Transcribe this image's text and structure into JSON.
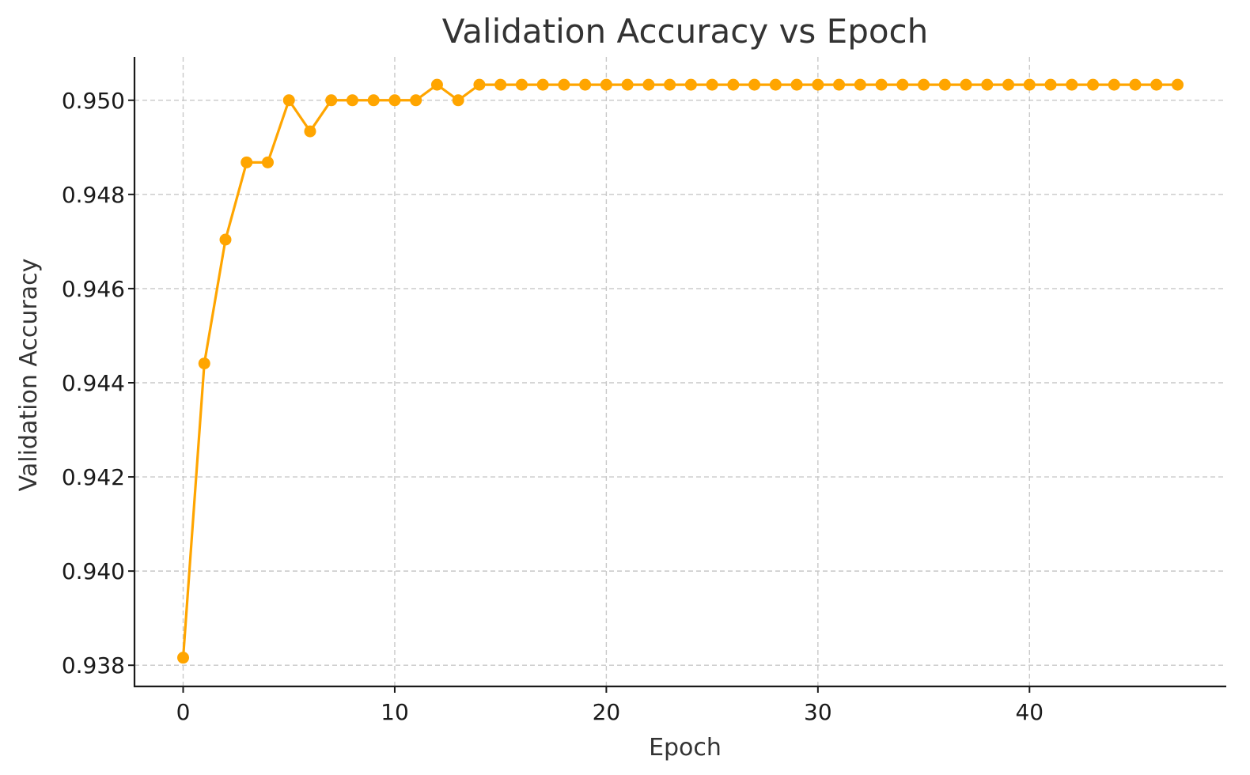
{
  "chart_data": {
    "type": "line",
    "title": "Validation Accuracy vs Epoch",
    "xlabel": "Epoch",
    "ylabel": "Validation Accuracy",
    "xlim": [
      -2.3,
      49.3
    ],
    "ylim": [
      0.93755,
      0.95092
    ],
    "xticks": [
      0,
      10,
      20,
      30,
      40
    ],
    "yticks": [
      0.938,
      0.94,
      0.942,
      0.944,
      0.946,
      0.948,
      0.95
    ],
    "ytick_format_decimals": 3,
    "grid": true,
    "color": "#FFA500",
    "x": [
      0,
      1,
      2,
      3,
      4,
      5,
      6,
      7,
      8,
      9,
      10,
      11,
      12,
      13,
      14,
      15,
      16,
      17,
      18,
      19,
      20,
      21,
      22,
      23,
      24,
      25,
      26,
      27,
      28,
      29,
      30,
      31,
      32,
      33,
      34,
      35,
      36,
      37,
      38,
      39,
      40,
      41,
      42,
      43,
      44,
      45,
      46,
      47
    ],
    "series": [
      {
        "values": [
          0.93816,
          0.94441,
          0.94704,
          0.94868,
          0.94868,
          0.95,
          0.94934,
          0.95,
          0.95,
          0.95,
          0.95,
          0.95,
          0.95033,
          0.95,
          0.95033,
          0.95033,
          0.95033,
          0.95033,
          0.95033,
          0.95033,
          0.95033,
          0.95033,
          0.95033,
          0.95033,
          0.95033,
          0.95033,
          0.95033,
          0.95033,
          0.95033,
          0.95033,
          0.95033,
          0.95033,
          0.95033,
          0.95033,
          0.95033,
          0.95033,
          0.95033,
          0.95033,
          0.95033,
          0.95033,
          0.95033,
          0.95033,
          0.95033,
          0.95033,
          0.95033,
          0.95033,
          0.95033,
          0.95033
        ]
      }
    ]
  }
}
